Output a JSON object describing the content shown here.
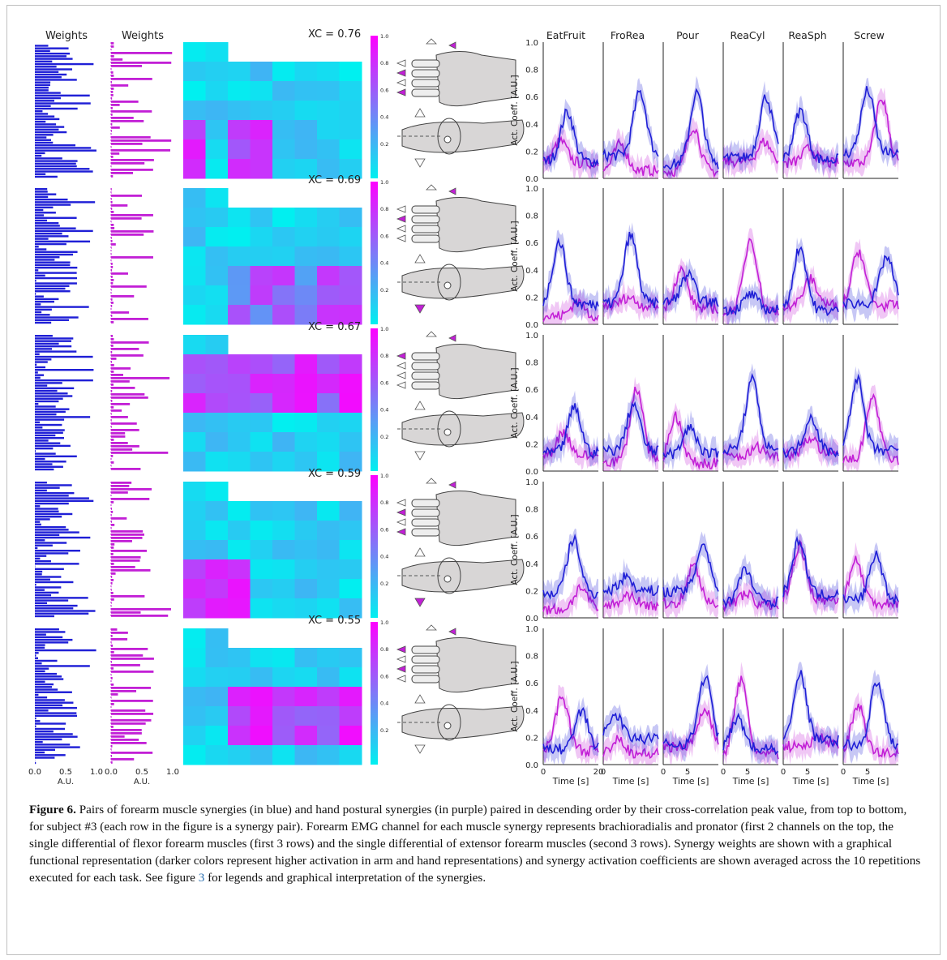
{
  "figure": {
    "weights_labels": [
      "Weights",
      "Weights"
    ],
    "weights_axis_ticks": [
      "0.0",
      "0.5",
      "1.0"
    ],
    "weights_axis_unit": "A.U.",
    "colorbar_ticks": [
      "1.0",
      "0.8",
      "0.6",
      "0.4",
      "0.2"
    ],
    "rows": [
      {
        "xc": "XC = 0.76"
      },
      {
        "xc": "XC = 0.69"
      },
      {
        "xc": "XC = 0.67"
      },
      {
        "xc": "XC = 0.59"
      },
      {
        "xc": "XC = 0.55"
      }
    ],
    "tasks": [
      "EatFruit",
      "FroRea",
      "Pour",
      "ReaCyl",
      "ReaSph",
      "Screw"
    ],
    "activation_ylabel": "Act. Coeff. [A.U.]",
    "activation_yticks": [
      "1.0",
      "0.8",
      "0.6",
      "0.4",
      "0.2",
      "0.0"
    ],
    "time_label": "Time [s]",
    "time_ticks": [
      [
        "0",
        "20"
      ],
      [
        "0"
      ],
      [
        "0",
        "5"
      ],
      [
        "0",
        "5"
      ],
      [
        "0",
        "5"
      ],
      [
        "0",
        "5"
      ]
    ]
  },
  "colors": {
    "muscle": "#1f1fd6",
    "posture": "#c21fd6",
    "cmap_low": "#00f0f0",
    "cmap_high": "#ff00ff"
  },
  "caption": {
    "label": "Figure 6.",
    "text_before_ref": " Pairs of forearm muscle synergies (in blue) and hand postural synergies (in purple) paired in descending order by their cross-correlation peak value, from top to bottom, for subject #3 (each row in the figure is a synergy pair). Forearm EMG channel for each muscle synergy represents brachioradialis and pronator (first 2 channels on the top, the single differential of flexor forearm muscles (first 3 rows) and the single differential of extensor forearm muscles (second 3 rows). Synergy weights are shown with a graphical functional representation (darker colors represent higher activation in arm and hand representations) and synergy activation coefficients are shown averaged across the 10 repetitions executed for each task. See figure ",
    "ref": "3",
    "text_after_ref": " for legends and graphical interpretation of the synergies."
  }
}
